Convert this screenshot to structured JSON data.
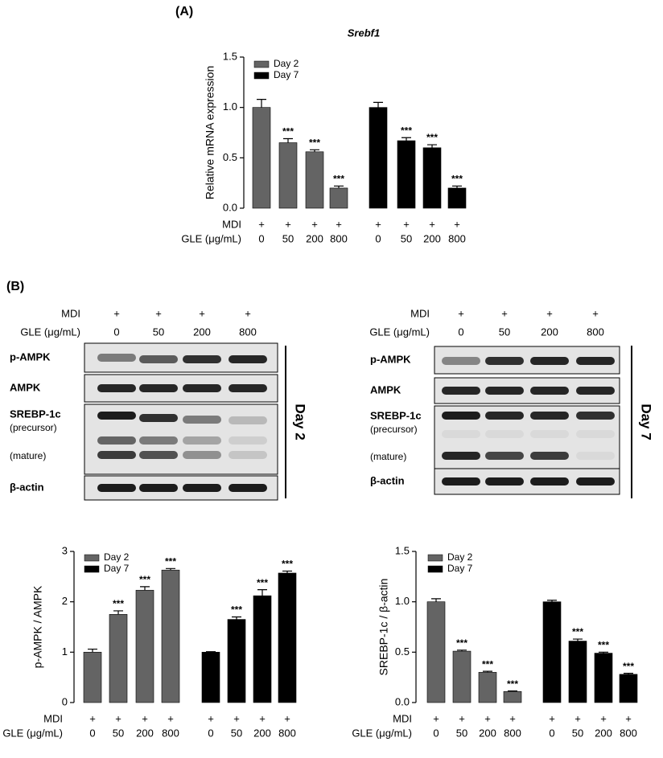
{
  "panels": {
    "a": "(A)",
    "b": "(B)"
  },
  "treatment": {
    "mdi": "MDI",
    "mdi_value": "+",
    "gle": "GLE (μg/mL)"
  },
  "chart_data": [
    {
      "type": "bar",
      "title": "Srebf1",
      "y_label": "Relative mRNA expression",
      "categories": [
        "0",
        "50",
        "200",
        "800"
      ],
      "ylim": [
        0,
        1.5
      ],
      "yticks": [
        {
          "value": 0,
          "label": "0.0"
        },
        {
          "value": 0.5,
          "label": "0.5"
        },
        {
          "value": 1,
          "label": "1.0"
        },
        {
          "value": 1.5,
          "label": "1.5"
        }
      ],
      "series": [
        {
          "name": "Day 2",
          "color": "#646464",
          "values": [
            1.0,
            0.65,
            0.56,
            0.2
          ],
          "errors": [
            0.08,
            0.04,
            0.02,
            0.02
          ],
          "significance": [
            null,
            "***",
            "***",
            "***"
          ]
        },
        {
          "name": "Day 7",
          "color": "#000000",
          "values": [
            1.0,
            0.67,
            0.6,
            0.2
          ],
          "errors": [
            0.05,
            0.03,
            0.03,
            0.02
          ],
          "significance": [
            null,
            "***",
            "***",
            "***"
          ]
        }
      ]
    },
    {
      "type": "bar",
      "y_label": "p-AMPK / AMPK",
      "categories": [
        "0",
        "50",
        "200",
        "800"
      ],
      "ylim": [
        0,
        3
      ],
      "yticks": [
        0,
        1,
        2,
        3
      ],
      "series": [
        {
          "name": "Day 2",
          "color": "#646464",
          "values": [
            1.0,
            1.75,
            2.23,
            2.63
          ],
          "errors": [
            0.06,
            0.07,
            0.07,
            0.03
          ],
          "significance": [
            null,
            "***",
            "***",
            "***"
          ]
        },
        {
          "name": "Day 7",
          "color": "#000000",
          "values": [
            1.0,
            1.65,
            2.12,
            2.57
          ],
          "errors": [
            0.01,
            0.05,
            0.12,
            0.04
          ],
          "significance": [
            null,
            "***",
            "***",
            "***"
          ]
        }
      ]
    },
    {
      "type": "bar",
      "y_label": "SREBP-1c / β-actin",
      "categories": [
        "0",
        "50",
        "200",
        "800"
      ],
      "ylim": [
        0,
        1.5
      ],
      "yticks": [
        {
          "value": 0,
          "label": "0.0"
        },
        {
          "value": 0.5,
          "label": "0.5"
        },
        {
          "value": 1,
          "label": "1.0"
        },
        {
          "value": 1.5,
          "label": "1.5"
        }
      ],
      "series": [
        {
          "name": "Day 2",
          "color": "#646464",
          "values": [
            1.0,
            0.51,
            0.3,
            0.11
          ],
          "errors": [
            0.03,
            0.01,
            0.01,
            0.005
          ],
          "significance": [
            null,
            "***",
            "***",
            "***"
          ]
        },
        {
          "name": "Day 7",
          "color": "#000000",
          "values": [
            1.0,
            0.61,
            0.49,
            0.28
          ],
          "errors": [
            0.015,
            0.02,
            0.01,
            0.01
          ],
          "significance": [
            null,
            "***",
            "***",
            "***"
          ]
        }
      ]
    }
  ],
  "blots": [
    {
      "day": "Day 2",
      "rows": [
        "p-AMPK",
        "AMPK",
        "SREBP-1c",
        "β-actin"
      ],
      "sublabels": [
        "(precursor)",
        "(mature)"
      ]
    },
    {
      "day": "Day 7",
      "rows": [
        "p-AMPK",
        "AMPK",
        "SREBP-1c",
        "β-actin"
      ],
      "sublabels": [
        "(precursor)",
        "(mature)"
      ]
    }
  ]
}
